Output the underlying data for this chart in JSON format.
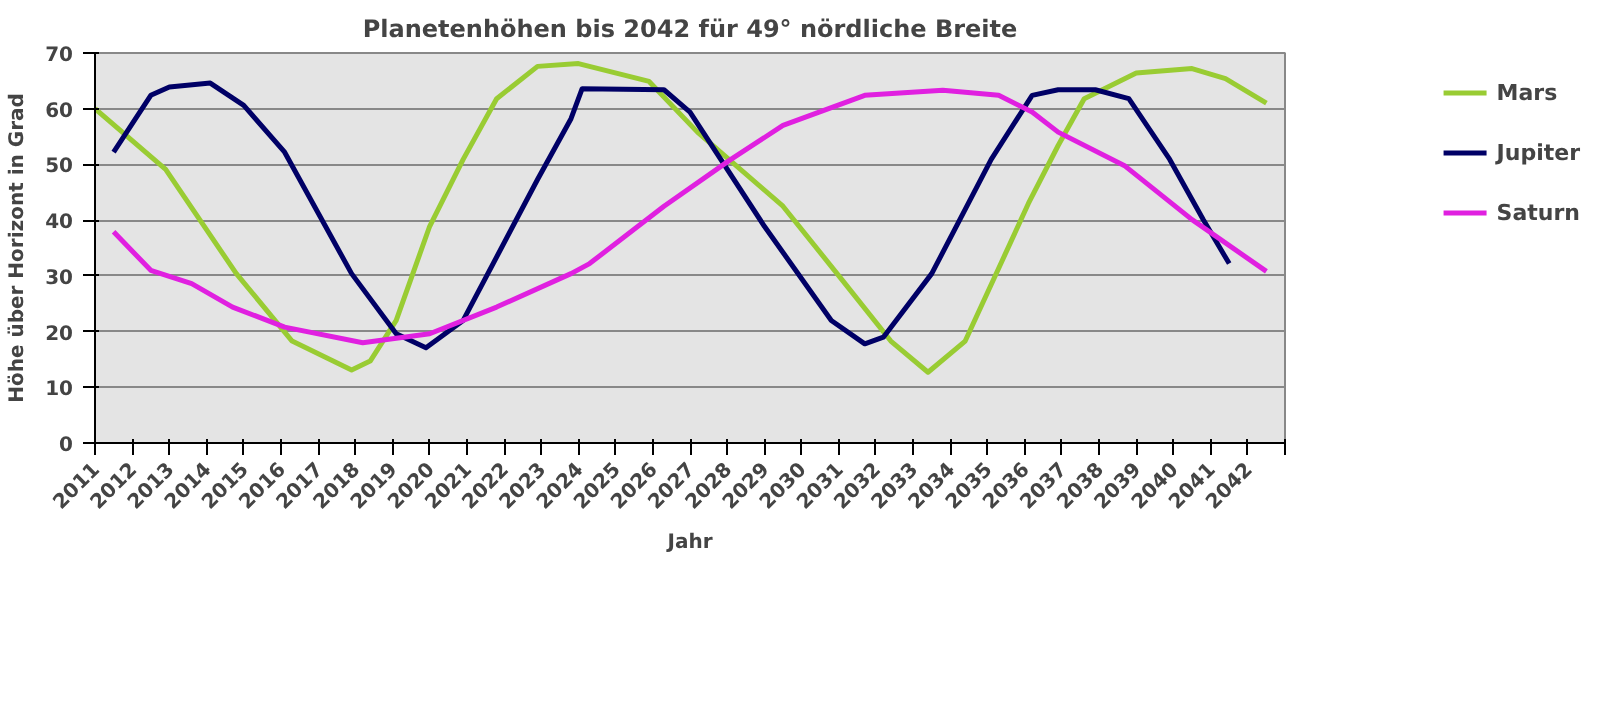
{
  "chart_data": {
    "type": "line",
    "title": "Planetenhöhen bis 2042 für 49° nördliche Breite",
    "xlabel": "Jahr",
    "ylabel": "Höhe über Horizont in Grad",
    "xlim": [
      2011,
      2043
    ],
    "xticks": [
      2011,
      2012,
      2013,
      2014,
      2015,
      2016,
      2017,
      2018,
      2019,
      2020,
      2021,
      2022,
      2023,
      2024,
      2025,
      2026,
      2027,
      2028,
      2029,
      2030,
      2031,
      2032,
      2033,
      2034,
      2035,
      2036,
      2037,
      2038,
      2039,
      2040,
      2041,
      2042,
      {
        "value": 2043,
        "label": null
      }
    ],
    "ylim": [
      0,
      70
    ],
    "yticks": [
      0,
      10,
      20,
      30,
      40,
      50,
      60,
      70
    ],
    "grid": "y",
    "legend": "right",
    "marker": "none",
    "line_style": "solid",
    "series": [
      {
        "name": "Mars",
        "color": "#99cc33",
        "x": [
          2011.0,
          2012.9,
          2014.8,
          2016.3,
          2017.9,
          2018.4,
          2019.1,
          2020.0,
          2020.9,
          2021.8,
          2022.9,
          2024.0,
          2025.9,
          2027.2,
          2029.5,
          2031.1,
          2032.4,
          2033.4,
          2034.4,
          2035.4,
          2036.1,
          2036.9,
          2037.6,
          2039.0,
          2040.5,
          2041.4,
          2042.5
        ],
        "values": [
          60.0,
          49.1,
          30.4,
          18.3,
          13.1,
          14.7,
          22.0,
          38.9,
          50.9,
          61.8,
          67.6,
          68.1,
          64.9,
          55.8,
          42.5,
          29.2,
          18.3,
          12.7,
          18.3,
          32.8,
          43.0,
          53.4,
          61.8,
          66.4,
          67.2,
          65.4,
          61.0
        ]
      },
      {
        "name": "Jupiter",
        "color": "#000066",
        "x": [
          2011.5,
          2012.5,
          2013.0,
          2014.1,
          2015.0,
          2016.1,
          2017.9,
          2019.1,
          2019.9,
          2020.9,
          2022.9,
          2023.8,
          2024.1,
          2026.3,
          2027.0,
          2029.0,
          2030.8,
          2031.7,
          2032.2,
          2033.5,
          2035.1,
          2036.2,
          2036.9,
          2037.9,
          2038.8,
          2039.9,
          2040.8,
          2041.5
        ],
        "values": [
          52.2,
          62.4,
          63.9,
          64.6,
          60.6,
          52.2,
          30.4,
          19.6,
          17.1,
          22.0,
          47.3,
          58.2,
          63.6,
          63.4,
          59.4,
          38.9,
          22.0,
          17.8,
          19.0,
          30.4,
          50.9,
          62.4,
          63.4,
          63.4,
          61.8,
          50.9,
          40.1,
          32.2
        ]
      },
      {
        "name": "Saturn",
        "color": "#e020e0",
        "x": [
          2011.5,
          2012.5,
          2013.6,
          2014.7,
          2016.1,
          2018.2,
          2020.0,
          2021.8,
          2023.8,
          2024.3,
          2026.3,
          2028.1,
          2029.5,
          2031.7,
          2033.8,
          2035.3,
          2036.2,
          2036.9,
          2038.7,
          2040.5,
          2042.5
        ],
        "values": [
          37.9,
          31.0,
          28.6,
          24.4,
          20.8,
          18.0,
          19.6,
          24.4,
          30.4,
          32.2,
          42.5,
          50.9,
          57.0,
          62.4,
          63.3,
          62.4,
          59.4,
          55.8,
          49.7,
          40.1,
          30.8
        ]
      }
    ]
  }
}
